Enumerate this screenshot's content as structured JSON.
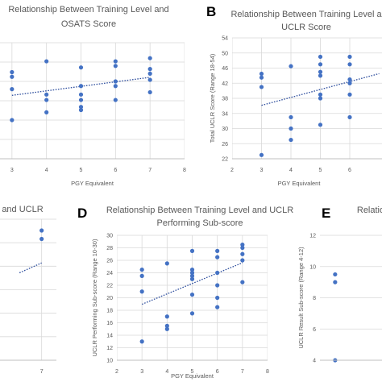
{
  "chart_data": [
    {
      "id": "A",
      "type": "scatter",
      "title_lines": [
        "Relationship Between Training Level and",
        "OSATS Score"
      ],
      "xlabel": "PGY Equivalent",
      "ylabel": "",
      "xlim": [
        2,
        8
      ],
      "xticks": [
        3,
        4,
        5,
        6,
        7,
        8
      ],
      "ylim": [
        18,
        33
      ],
      "yticks": [],
      "grid": true,
      "trendline": "linear",
      "points": [
        [
          3,
          29.2
        ],
        [
          3,
          28.6
        ],
        [
          3,
          27.0
        ],
        [
          3,
          23.0
        ],
        [
          4,
          30.6
        ],
        [
          4,
          26.3
        ],
        [
          4,
          25.6
        ],
        [
          4,
          24.0
        ],
        [
          5,
          29.8
        ],
        [
          5,
          27.4
        ],
        [
          5,
          26.3
        ],
        [
          5,
          25.6
        ],
        [
          5,
          24.7
        ],
        [
          5,
          24.3
        ],
        [
          6,
          30.6
        ],
        [
          6,
          30.0
        ],
        [
          6,
          28.0
        ],
        [
          6,
          27.4
        ],
        [
          6,
          25.6
        ],
        [
          7,
          31.0
        ],
        [
          7,
          29.6
        ],
        [
          7,
          29.0
        ],
        [
          7,
          28.2
        ],
        [
          7,
          26.6
        ]
      ]
    },
    {
      "id": "B",
      "letter": "B",
      "type": "scatter",
      "title_lines": [
        "Relationship Between Training Level a",
        "UCLR Score"
      ],
      "xlabel": "PGY Equivalent",
      "ylabel": "Total UCLR Score (Range 18-54)",
      "xlim": [
        2,
        8
      ],
      "xticks": [
        2,
        3,
        4,
        5,
        6
      ],
      "ylim": [
        22,
        54
      ],
      "yticks": [
        22,
        26,
        30,
        34,
        38,
        42,
        46,
        50,
        54
      ],
      "grid": true,
      "trendline": "linear",
      "points": [
        [
          3,
          44.5
        ],
        [
          3,
          43.5
        ],
        [
          3,
          41
        ],
        [
          3,
          23
        ],
        [
          4,
          46.5
        ],
        [
          4,
          33
        ],
        [
          4,
          30
        ],
        [
          4,
          27
        ],
        [
          5,
          49
        ],
        [
          5,
          47
        ],
        [
          5,
          45
        ],
        [
          5,
          44
        ],
        [
          5,
          39
        ],
        [
          5,
          38
        ],
        [
          5,
          31
        ],
        [
          6,
          49
        ],
        [
          6,
          47
        ],
        [
          6,
          43
        ],
        [
          6,
          42
        ],
        [
          6,
          39
        ],
        [
          6,
          33
        ]
      ]
    },
    {
      "id": "C",
      "type": "scatter",
      "title_lines": [
        "and UCLR"
      ],
      "xlabel": "",
      "ylabel": "",
      "xlim": [
        2,
        8
      ],
      "xticks": [
        7
      ],
      "ylim": [
        0,
        10
      ],
      "yticks": [],
      "grid": true,
      "trendline": "linear",
      "points": [
        [
          7,
          9.2
        ],
        [
          7,
          8.6
        ]
      ]
    },
    {
      "id": "D",
      "letter": "D",
      "type": "scatter",
      "title_lines": [
        "Relationship Between Training Level and UCLR",
        "Performing Sub-score"
      ],
      "xlabel": "PGY Equivalent",
      "ylabel": "UCLR Performing Sub-score (Range 10-30)",
      "xlim": [
        2,
        8
      ],
      "xticks": [
        2,
        3,
        4,
        5,
        6,
        7,
        8
      ],
      "ylim": [
        10,
        30
      ],
      "yticks": [
        10,
        12,
        14,
        16,
        18,
        20,
        22,
        24,
        26,
        28,
        30
      ],
      "grid": true,
      "trendline": "linear",
      "points": [
        [
          3,
          24.5
        ],
        [
          3,
          23.5
        ],
        [
          3,
          21
        ],
        [
          3,
          13
        ],
        [
          4,
          25.5
        ],
        [
          4,
          17
        ],
        [
          4,
          15.5
        ],
        [
          4,
          15
        ],
        [
          5,
          27.5
        ],
        [
          5,
          24.5
        ],
        [
          5,
          24
        ],
        [
          5,
          23.5
        ],
        [
          5,
          23
        ],
        [
          5,
          20.5
        ],
        [
          5,
          17.5
        ],
        [
          6,
          27.5
        ],
        [
          6,
          26.5
        ],
        [
          6,
          24
        ],
        [
          6,
          22
        ],
        [
          6,
          20
        ],
        [
          6,
          18.5
        ],
        [
          7,
          28.5
        ],
        [
          7,
          28
        ],
        [
          7,
          27
        ],
        [
          7,
          26
        ],
        [
          7,
          22.5
        ]
      ]
    },
    {
      "id": "E",
      "letter": "E",
      "type": "scatter",
      "title_lines": [
        "Relatio"
      ],
      "xlabel": "",
      "ylabel": "UCLR Result Sub-score (Range 4-12)",
      "xlim": [
        2,
        8
      ],
      "xticks": [],
      "ylim": [
        4,
        12
      ],
      "yticks": [
        4,
        6,
        8,
        10,
        12
      ],
      "grid": true,
      "trendline": "",
      "points": [
        [
          3,
          9.5
        ],
        [
          3,
          9.0
        ],
        [
          3,
          4.0
        ]
      ]
    }
  ],
  "colors": {
    "marker": "#4472c4",
    "trend": "#2f4f9e",
    "grid": "#d9d9d9",
    "axis": "#bfbfbf",
    "text": "#595959"
  }
}
